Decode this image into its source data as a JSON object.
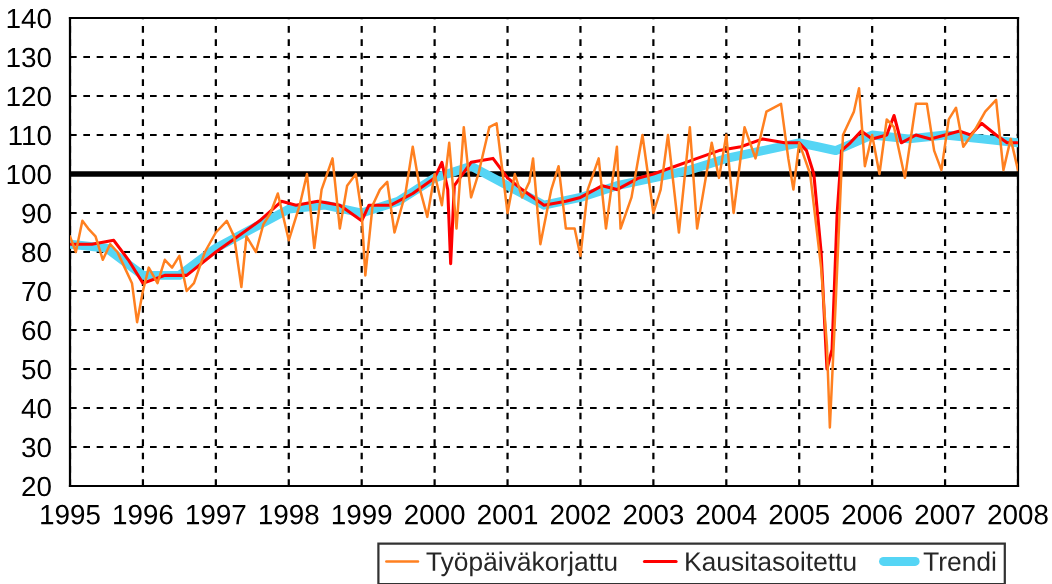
{
  "chart_data": {
    "type": "line",
    "xlim": [
      1995,
      2008
    ],
    "ylim": [
      20,
      140
    ],
    "xticks": [
      1995,
      1996,
      1997,
      1998,
      1999,
      2000,
      2001,
      2002,
      2003,
      2004,
      2005,
      2006,
      2007,
      2008
    ],
    "yticks": [
      20,
      30,
      40,
      50,
      60,
      70,
      80,
      90,
      100,
      110,
      120,
      130,
      140
    ],
    "grid": true,
    "legend": "bottom right",
    "ref_lines": [
      {
        "axis": "y",
        "value": 100,
        "color": "#000000"
      }
    ],
    "series": [
      {
        "name": "Työpäiväkorjattu",
        "color": "#ff8020",
        "x": [
          1995.0,
          1995.08,
          1995.17,
          1995.25,
          1995.35,
          1995.45,
          1995.55,
          1995.65,
          1995.75,
          1995.85,
          1995.92,
          1996.0,
          1996.08,
          1996.2,
          1996.3,
          1996.4,
          1996.5,
          1996.6,
          1996.7,
          1996.85,
          1997.0,
          1997.15,
          1997.25,
          1997.35,
          1997.42,
          1997.55,
          1997.65,
          1997.75,
          1997.85,
          1998.0,
          1998.15,
          1998.25,
          1998.35,
          1998.45,
          1998.6,
          1998.7,
          1998.8,
          1998.92,
          1999.0,
          1999.05,
          1999.15,
          1999.25,
          1999.35,
          1999.45,
          1999.6,
          1999.7,
          1999.8,
          1999.9,
          2000.0,
          2000.1,
          2000.2,
          2000.3,
          2000.4,
          2000.5,
          2000.6,
          2000.75,
          2000.85,
          2001.0,
          2001.1,
          2001.2,
          2001.3,
          2001.35,
          2001.45,
          2001.6,
          2001.7,
          2001.8,
          2001.92,
          2002.0,
          2002.1,
          2002.25,
          2002.35,
          2002.5,
          2002.55,
          2002.7,
          2002.85,
          2003.0,
          2003.1,
          2003.2,
          2003.35,
          2003.5,
          2003.6,
          2003.8,
          2003.9,
          2004.0,
          2004.1,
          2004.25,
          2004.4,
          2004.55,
          2004.75,
          2004.85,
          2004.92,
          2005.0,
          2005.15,
          2005.3,
          2005.38,
          2005.42,
          2005.5,
          2005.6,
          2005.75,
          2005.82,
          2005.9,
          2006.0,
          2006.1,
          2006.2,
          2006.3,
          2006.45,
          2006.6,
          2006.75,
          2006.85,
          2006.95,
          2007.05,
          2007.15,
          2007.25,
          2007.4,
          2007.55,
          2007.7,
          2007.8,
          2007.9,
          2008.0
        ],
        "values": [
          84,
          80,
          88,
          86,
          84,
          78,
          82,
          80,
          76,
          72,
          62,
          70,
          76,
          72,
          78,
          76,
          79,
          70,
          72,
          80,
          85,
          88,
          84,
          71,
          84,
          80,
          87,
          90,
          95,
          83,
          92,
          100,
          81,
          96,
          104,
          86,
          97,
          100,
          90,
          74,
          92,
          96,
          98,
          85,
          95,
          107,
          96,
          89,
          100,
          92,
          108,
          86,
          112,
          94,
          100,
          112,
          113,
          90,
          100,
          94,
          98,
          104,
          82,
          96,
          102,
          86,
          86,
          79,
          96,
          104,
          86,
          107,
          86,
          94,
          110,
          90,
          96,
          110,
          85,
          112,
          86,
          108,
          99,
          110,
          90,
          112,
          104,
          116,
          118,
          104,
          96,
          108,
          100,
          76,
          56,
          35,
          67,
          110,
          116,
          122,
          102,
          110,
          100,
          114,
          112,
          99,
          118,
          118,
          106,
          101,
          114,
          117,
          107,
          111,
          116,
          119,
          101,
          109,
          101
        ]
      },
      {
        "name": "Kausitasoitettu",
        "color": "#ff0000",
        "x": [
          1995.0,
          1995.3,
          1995.6,
          1995.8,
          1996.0,
          1996.3,
          1996.6,
          1997.0,
          1997.3,
          1997.6,
          1997.9,
          1998.1,
          1998.4,
          1998.7,
          1999.0,
          1999.1,
          1999.4,
          1999.7,
          2000.0,
          2000.1,
          2000.18,
          2000.22,
          2000.27,
          2000.5,
          2000.8,
          2001.0,
          2001.2,
          2001.5,
          2001.8,
          2002.0,
          2002.3,
          2002.5,
          2002.8,
          2003.0,
          2003.3,
          2003.6,
          2003.9,
          2004.2,
          2004.5,
          2004.8,
          2005.0,
          2005.1,
          2005.2,
          2005.3,
          2005.38,
          2005.45,
          2005.52,
          2005.58,
          2005.7,
          2005.85,
          2006.0,
          2006.2,
          2006.3,
          2006.4,
          2006.6,
          2006.8,
          2007.0,
          2007.2,
          2007.35,
          2007.5,
          2007.7,
          2007.85,
          2008.0
        ],
        "values": [
          82,
          82,
          83,
          78,
          72,
          74,
          74,
          80,
          84,
          88,
          93,
          92,
          93,
          92,
          88,
          92,
          92,
          95,
          99,
          103,
          96,
          77,
          97,
          103,
          104,
          99,
          96,
          92,
          93,
          94,
          97,
          96,
          99,
          100,
          102,
          104,
          106,
          107,
          109,
          108,
          108,
          106,
          100,
          80,
          50,
          55,
          90,
          106,
          108,
          111,
          109,
          110,
          115,
          108,
          110,
          109,
          110,
          111,
          110,
          113,
          110,
          108,
          108
        ]
      },
      {
        "name": "Trendi",
        "color": "#55d5f5",
        "x": [
          1995.0,
          1995.5,
          1996.0,
          1996.5,
          1997.0,
          1997.5,
          1998.0,
          1998.5,
          1999.0,
          1999.5,
          2000.0,
          2000.5,
          2001.0,
          2001.5,
          2002.0,
          2002.5,
          2003.0,
          2003.5,
          2004.0,
          2004.5,
          2005.0,
          2005.25,
          2005.5,
          2006.0,
          2006.5,
          2007.0,
          2007.5,
          2008.0
        ],
        "values": [
          82,
          81,
          74,
          74,
          81,
          86,
          91,
          92,
          90,
          93,
          99,
          102,
          97,
          92,
          94,
          97,
          99,
          101,
          104,
          106,
          108,
          107,
          106,
          110,
          109,
          110,
          109,
          108
        ]
      }
    ]
  }
}
